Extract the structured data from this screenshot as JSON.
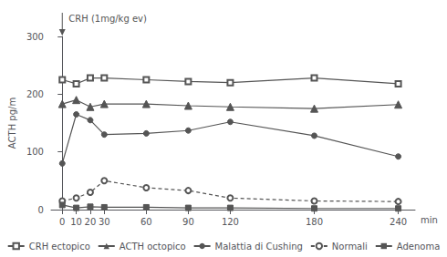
{
  "chart_data": {
    "type": "line",
    "x": [
      0,
      10,
      20,
      30,
      60,
      90,
      120,
      180,
      240
    ],
    "series": [
      {
        "name": "CRH ectopico",
        "color": "#555555",
        "marker": "square-open",
        "line_style": "solid",
        "values": [
          225,
          218,
          228,
          228,
          225,
          222,
          220,
          228,
          218
        ]
      },
      {
        "name": "ACTH octopico",
        "color": "#555555",
        "marker": "triangle",
        "line_style": "solid",
        "values": [
          183,
          190,
          178,
          183,
          183,
          180,
          178,
          175,
          182
        ]
      },
      {
        "name": "Malattia di Cushing",
        "color": "#555555",
        "marker": "circle",
        "line_style": "solid",
        "values": [
          80,
          165,
          155,
          130,
          132,
          137,
          152,
          128,
          92
        ]
      },
      {
        "name": "Normali",
        "color": "#555555",
        "marker": "circle-open",
        "line_style": "dashed",
        "values": [
          15,
          20,
          30,
          50,
          38,
          33,
          20,
          15,
          14
        ]
      },
      {
        "name": "Adenoma",
        "color": "#555555",
        "marker": "square",
        "line_style": "solid",
        "values": [
          8,
          3,
          5,
          4,
          4,
          3,
          3,
          2,
          2
        ]
      }
    ],
    "xlabel": "min",
    "ylabel": "ACTH pg/m",
    "xlim": [
      -8,
      252
    ],
    "xticks": [
      0,
      10,
      20,
      30,
      60,
      90,
      120,
      180,
      240
    ],
    "ylim": [
      0,
      300
    ],
    "yticks": [
      0,
      100,
      200,
      300
    ],
    "annotations": [
      {
        "text": "CRH (1mg/kg ev)",
        "x": 0
      }
    ],
    "grid": false,
    "legend": "bottom"
  }
}
